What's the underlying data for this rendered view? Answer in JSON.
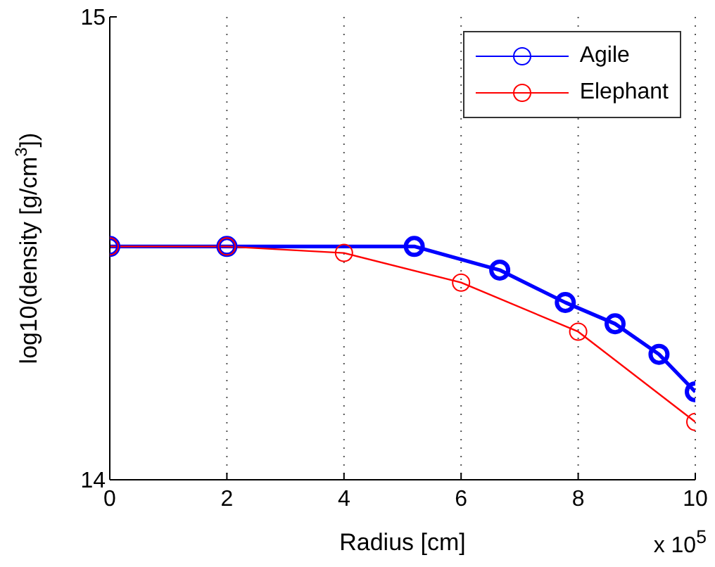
{
  "chart_data": {
    "type": "line",
    "xlabel": "Radius [cm]",
    "ylabel": "log10(density [g/cm$^{3}$])",
    "annotations": [
      "x 10$^{5}$"
    ],
    "xlim": [
      0,
      10
    ],
    "xticks": [
      0,
      2,
      4,
      6,
      8,
      10
    ],
    "ylim": [
      14,
      15
    ],
    "yticks": [
      14,
      15
    ],
    "grid": "x",
    "legend": "top right",
    "marker": "circle",
    "line_style": "solid",
    "series": [
      {
        "name": "Agile",
        "color": "#0000ff",
        "x": [
          0,
          2,
          5.2,
          6.66,
          7.78,
          8.63,
          9.38,
          10
        ],
        "values": [
          14.504,
          14.504,
          14.504,
          14.453,
          14.383,
          14.337,
          14.271,
          14.19
        ]
      },
      {
        "name": "Elephant",
        "color": "#ff0000",
        "x": [
          0,
          2,
          4,
          6,
          8,
          10
        ],
        "values": [
          14.504,
          14.504,
          14.49,
          14.426,
          14.32,
          14.125
        ]
      }
    ]
  }
}
